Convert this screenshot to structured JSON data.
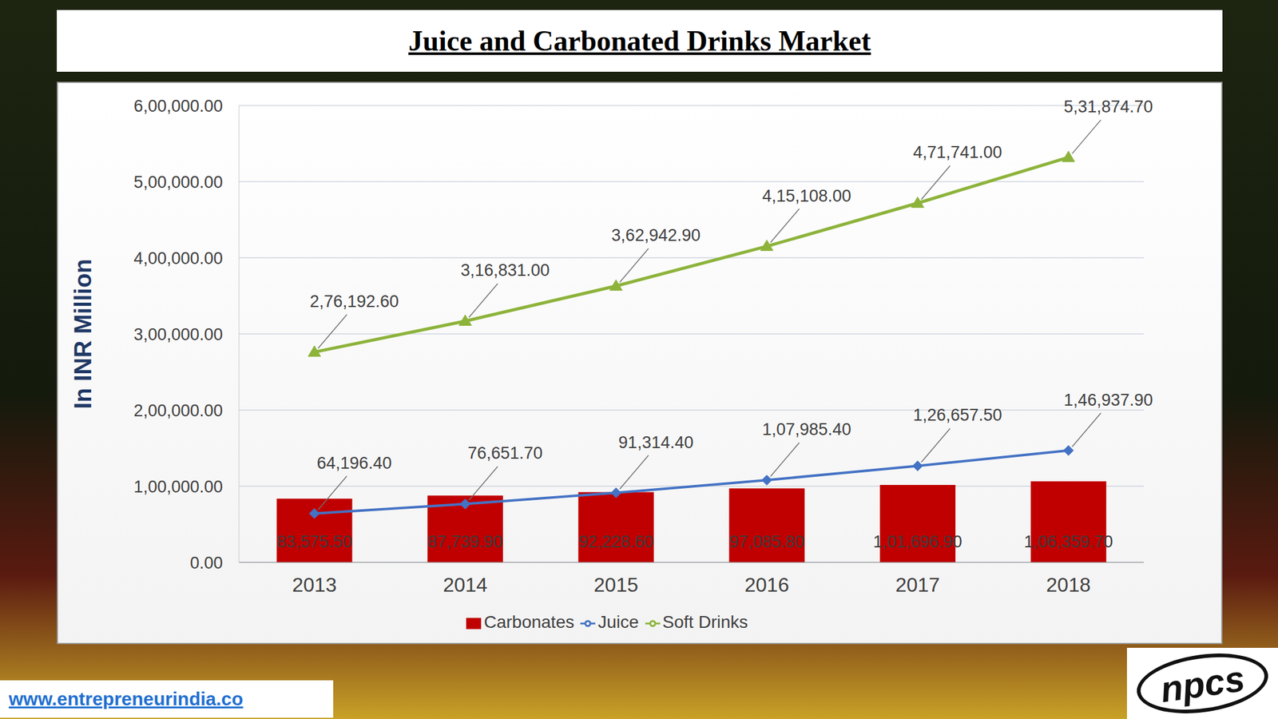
{
  "chart_data": {
    "type": "bar",
    "title": "Juice and Carbonated Drinks Market",
    "y_label": "In INR Million",
    "categories": [
      "2013",
      "2014",
      "2015",
      "2016",
      "2017",
      "2018"
    ],
    "series": [
      {
        "name": "Carbonates",
        "type": "bar",
        "color": "#c00000",
        "values": [
          83575.5,
          87739.9,
          92228.6,
          97085.8,
          101696.9,
          106359.7
        ],
        "value_labels": [
          "83,575.50",
          "87,739.90",
          "92,228.60",
          "97,085.80",
          "1,01,696.90",
          "1,06,359.70"
        ]
      },
      {
        "name": "Juice",
        "type": "line",
        "color": "#4472c4",
        "marker": "diamond",
        "values": [
          64196.4,
          76651.7,
          91314.4,
          107985.4,
          126657.5,
          146937.9
        ],
        "value_labels": [
          "64,196.40",
          "76,651.70",
          "91,314.40",
          "1,07,985.40",
          "1,26,657.50",
          "1,46,937.90"
        ]
      },
      {
        "name": "Soft Drinks",
        "type": "line",
        "color": "#8db33b",
        "marker": "triangle",
        "values": [
          276192.6,
          316831,
          362942.9,
          415108,
          471741,
          531874.7
        ],
        "value_labels": [
          "2,76,192.60",
          "3,16,831.00",
          "3,62,942.90",
          "4,15,108.00",
          "4,71,741.00",
          "5,31,874.70"
        ]
      }
    ],
    "ylim": [
      0,
      600000
    ],
    "yticks": [
      {
        "value": 0,
        "label": "0.00"
      },
      {
        "value": 100000,
        "label": "1,00,000.00"
      },
      {
        "value": 200000,
        "label": "2,00,000.00"
      },
      {
        "value": 300000,
        "label": "3,00,000.00"
      },
      {
        "value": 400000,
        "label": "4,00,000.00"
      },
      {
        "value": 500000,
        "label": "5,00,000.00"
      },
      {
        "value": 600000,
        "label": "6,00,000.00"
      }
    ],
    "grid": true,
    "legend": "bottom",
    "data_labels": true
  },
  "footer": {
    "url": "www.entrepreneurindia.co",
    "logo": "npcs"
  }
}
